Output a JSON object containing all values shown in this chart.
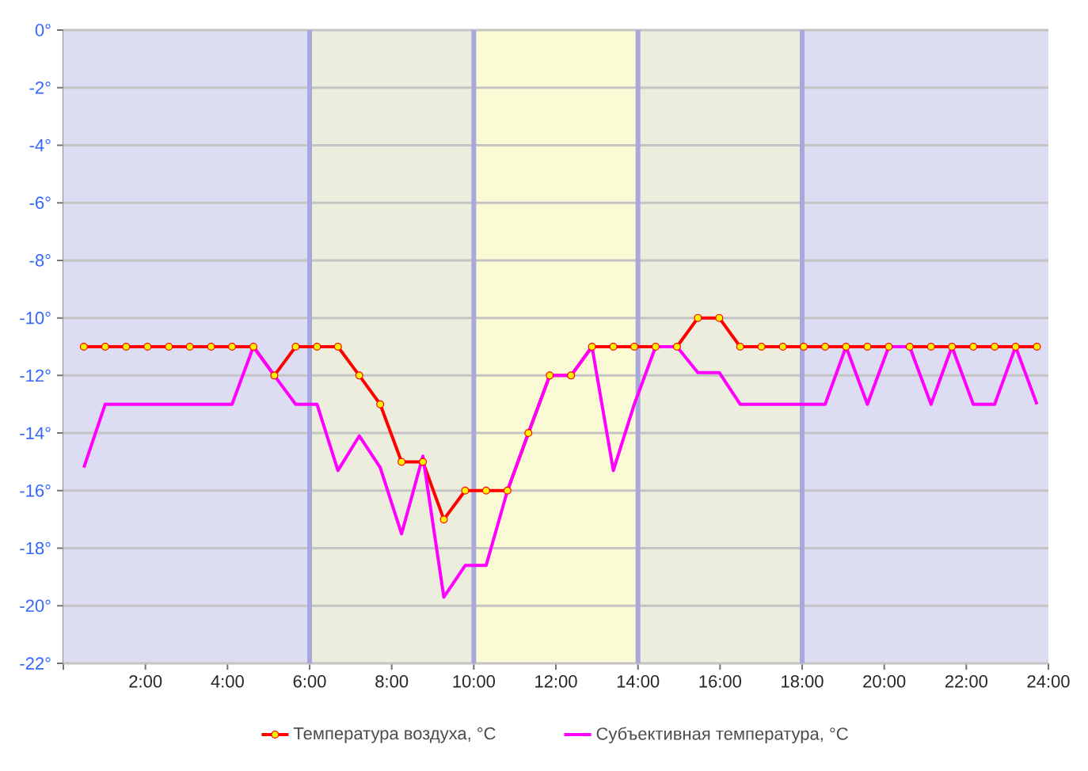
{
  "chart_data": {
    "type": "line",
    "x": [
      0.5,
      1.02,
      1.53,
      2.05,
      2.57,
      3.08,
      3.6,
      4.11,
      4.63,
      5.14,
      5.66,
      6.18,
      6.69,
      7.21,
      7.72,
      8.24,
      8.76,
      9.27,
      9.79,
      10.3,
      10.82,
      11.33,
      11.85,
      12.37,
      12.88,
      13.4,
      13.91,
      14.43,
      14.95,
      15.46,
      15.98,
      16.49,
      17.01,
      17.53,
      18.04,
      18.56,
      19.07,
      19.59,
      20.11,
      20.62,
      21.14,
      21.65,
      22.17,
      22.69,
      23.2,
      23.72
    ],
    "series": [
      {
        "name": "Температура воздуха, °C",
        "color": "#ff0000",
        "marker": "circle",
        "values": [
          -11,
          -11,
          -11,
          -11,
          -11,
          -11,
          -11,
          -11,
          -11,
          -12,
          -11,
          -11,
          -11,
          -12,
          -13,
          -15,
          -15,
          -17,
          -16,
          -16,
          -16,
          -14,
          -12,
          -12,
          -11,
          -11,
          -11,
          -11,
          -11,
          -10,
          -10,
          -11,
          -11,
          -11,
          -11,
          -11,
          -11,
          -11,
          -11,
          -11,
          -11,
          -11,
          -11,
          -11,
          -11,
          -11
        ]
      },
      {
        "name": "Субъективная температура, °C",
        "color": "#ff00ff",
        "marker": "none",
        "values": [
          -15.2,
          -13,
          -13,
          -13,
          -13,
          -13,
          -13,
          -13,
          -11,
          -12,
          -13,
          -13,
          -15.3,
          -14.1,
          -15.2,
          -17.5,
          -14.8,
          -19.7,
          -18.6,
          -18.6,
          -16,
          -14,
          -12,
          -12,
          -11,
          -15.3,
          -13,
          -11,
          -11,
          -11.9,
          -11.9,
          -13,
          -13,
          -13,
          -13,
          -13,
          -11,
          -13,
          -11,
          -11,
          -13,
          -11,
          -13,
          -13,
          -11,
          -13
        ]
      }
    ],
    "xlim": [
      0,
      24
    ],
    "xticks": [
      {
        "value": 0,
        "label": null
      },
      {
        "value": 2,
        "label": "2:00"
      },
      {
        "value": 4,
        "label": "4:00"
      },
      {
        "value": 6,
        "label": "6:00"
      },
      {
        "value": 8,
        "label": "8:00"
      },
      {
        "value": 10,
        "label": "10:00"
      },
      {
        "value": 12,
        "label": "12:00"
      },
      {
        "value": 14,
        "label": "14:00"
      },
      {
        "value": 16,
        "label": "16:00"
      },
      {
        "value": 18,
        "label": "18:00"
      },
      {
        "value": 20,
        "label": "20:00"
      },
      {
        "value": 22,
        "label": "22:00"
      },
      {
        "value": 24,
        "label": "24:00"
      }
    ],
    "ylim": [
      -22,
      0
    ],
    "yticks": [
      {
        "value": 0,
        "label": "0°"
      },
      {
        "value": -2,
        "label": "-2°"
      },
      {
        "value": -4,
        "label": "-4°"
      },
      {
        "value": -6,
        "label": "-6°"
      },
      {
        "value": -8,
        "label": "-8°"
      },
      {
        "value": -10,
        "label": "-10°"
      },
      {
        "value": -12,
        "label": "-12°"
      },
      {
        "value": -14,
        "label": "-14°"
      },
      {
        "value": -16,
        "label": "-16°"
      },
      {
        "value": -18,
        "label": "-18°"
      },
      {
        "value": -20,
        "label": "-20°"
      },
      {
        "value": -22,
        "label": "-22°"
      }
    ],
    "bands": [
      {
        "axis": "x",
        "from": 0,
        "to": 6,
        "color": "#dcdcf2"
      },
      {
        "axis": "x",
        "from": 6,
        "to": 10,
        "color": "#ededde"
      },
      {
        "axis": "x",
        "from": 10,
        "to": 14,
        "color": "#fafad4"
      },
      {
        "axis": "x",
        "from": 14,
        "to": 18,
        "color": "#ededde"
      },
      {
        "axis": "x",
        "from": 18,
        "to": 24,
        "color": "#dcdcf2"
      }
    ],
    "ref_lines": [
      {
        "axis": "x",
        "value": 6,
        "color": "#a8a8dc"
      },
      {
        "axis": "x",
        "value": 10,
        "color": "#a8a8dc"
      },
      {
        "axis": "x",
        "value": 14,
        "color": "#a8a8dc"
      },
      {
        "axis": "x",
        "value": 18,
        "color": "#a8a8dc"
      }
    ],
    "grid": "y",
    "legend": "bottom"
  }
}
